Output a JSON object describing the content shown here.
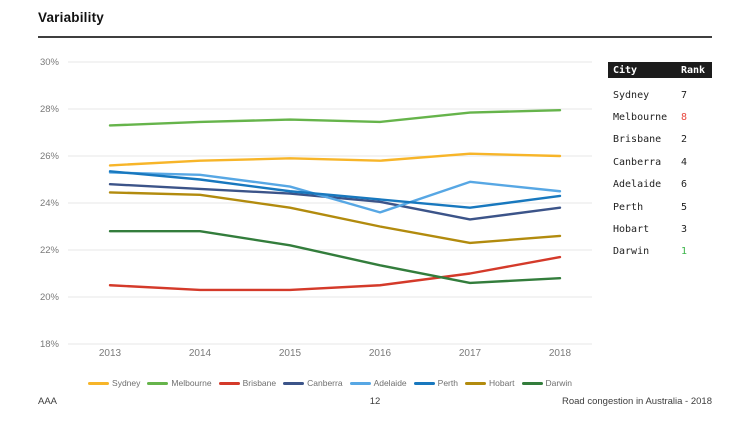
{
  "header": {
    "title": "Variability"
  },
  "footer": {
    "left": "AAA",
    "page_number": "12",
    "right": "Road congestion in Australia - 2018"
  },
  "rank_table": {
    "header": {
      "city": "City",
      "rank": "Rank"
    },
    "colors": {
      "default": "#222222",
      "worst": "#e8483f",
      "best": "#3bb54a"
    },
    "rows": [
      {
        "city": "Sydney",
        "rank": "7",
        "rank_color": "#222222"
      },
      {
        "city": "Melbourne",
        "rank": "8",
        "rank_color": "#e8483f"
      },
      {
        "city": "Brisbane",
        "rank": "2",
        "rank_color": "#222222"
      },
      {
        "city": "Canberra",
        "rank": "4",
        "rank_color": "#222222"
      },
      {
        "city": "Adelaide",
        "rank": "6",
        "rank_color": "#222222"
      },
      {
        "city": "Perth",
        "rank": "5",
        "rank_color": "#222222"
      },
      {
        "city": "Hobart",
        "rank": "3",
        "rank_color": "#222222"
      },
      {
        "city": "Darwin",
        "rank": "1",
        "rank_color": "#3bb54a"
      }
    ]
  },
  "chart_data": {
    "type": "line",
    "title": "Variability",
    "x": [
      2013,
      2014,
      2015,
      2016,
      2017,
      2018
    ],
    "x_labels": [
      "2013",
      "2014",
      "2015",
      "2016",
      "2017",
      "2018"
    ],
    "ylim": [
      18,
      30
    ],
    "yticks": [
      30,
      28,
      26,
      24,
      22,
      20,
      18
    ],
    "ytick_labels": [
      "30%",
      "28%",
      "26%",
      "24%",
      "22%",
      "20%",
      "18%"
    ],
    "grid": true,
    "grid_color": "#e7e7e7",
    "legend_position": "bottom",
    "series": [
      {
        "name": "Sydney",
        "color": "#f7b529",
        "values": [
          25.6,
          25.8,
          25.9,
          25.8,
          26.1,
          26.0
        ]
      },
      {
        "name": "Melbourne",
        "color": "#66b44b",
        "values": [
          27.3,
          27.45,
          27.55,
          27.45,
          27.85,
          27.95
        ]
      },
      {
        "name": "Brisbane",
        "color": "#d43a2a",
        "values": [
          20.5,
          20.3,
          20.3,
          20.5,
          21.0,
          21.7
        ]
      },
      {
        "name": "Canberra",
        "color": "#3c5489",
        "values": [
          24.8,
          24.6,
          24.4,
          24.05,
          23.3,
          23.8
        ]
      },
      {
        "name": "Adelaide",
        "color": "#57a7e4",
        "values": [
          25.3,
          25.2,
          24.7,
          23.6,
          24.9,
          24.5
        ]
      },
      {
        "name": "Perth",
        "color": "#1878be",
        "values": [
          25.35,
          25.0,
          24.5,
          24.15,
          23.8,
          24.3
        ]
      },
      {
        "name": "Hobart",
        "color": "#b28b0e",
        "values": [
          24.45,
          24.35,
          23.8,
          23.0,
          22.3,
          22.6
        ]
      },
      {
        "name": "Darwin",
        "color": "#337d3c",
        "values": [
          22.8,
          22.8,
          22.2,
          21.35,
          20.6,
          20.8
        ]
      }
    ]
  }
}
